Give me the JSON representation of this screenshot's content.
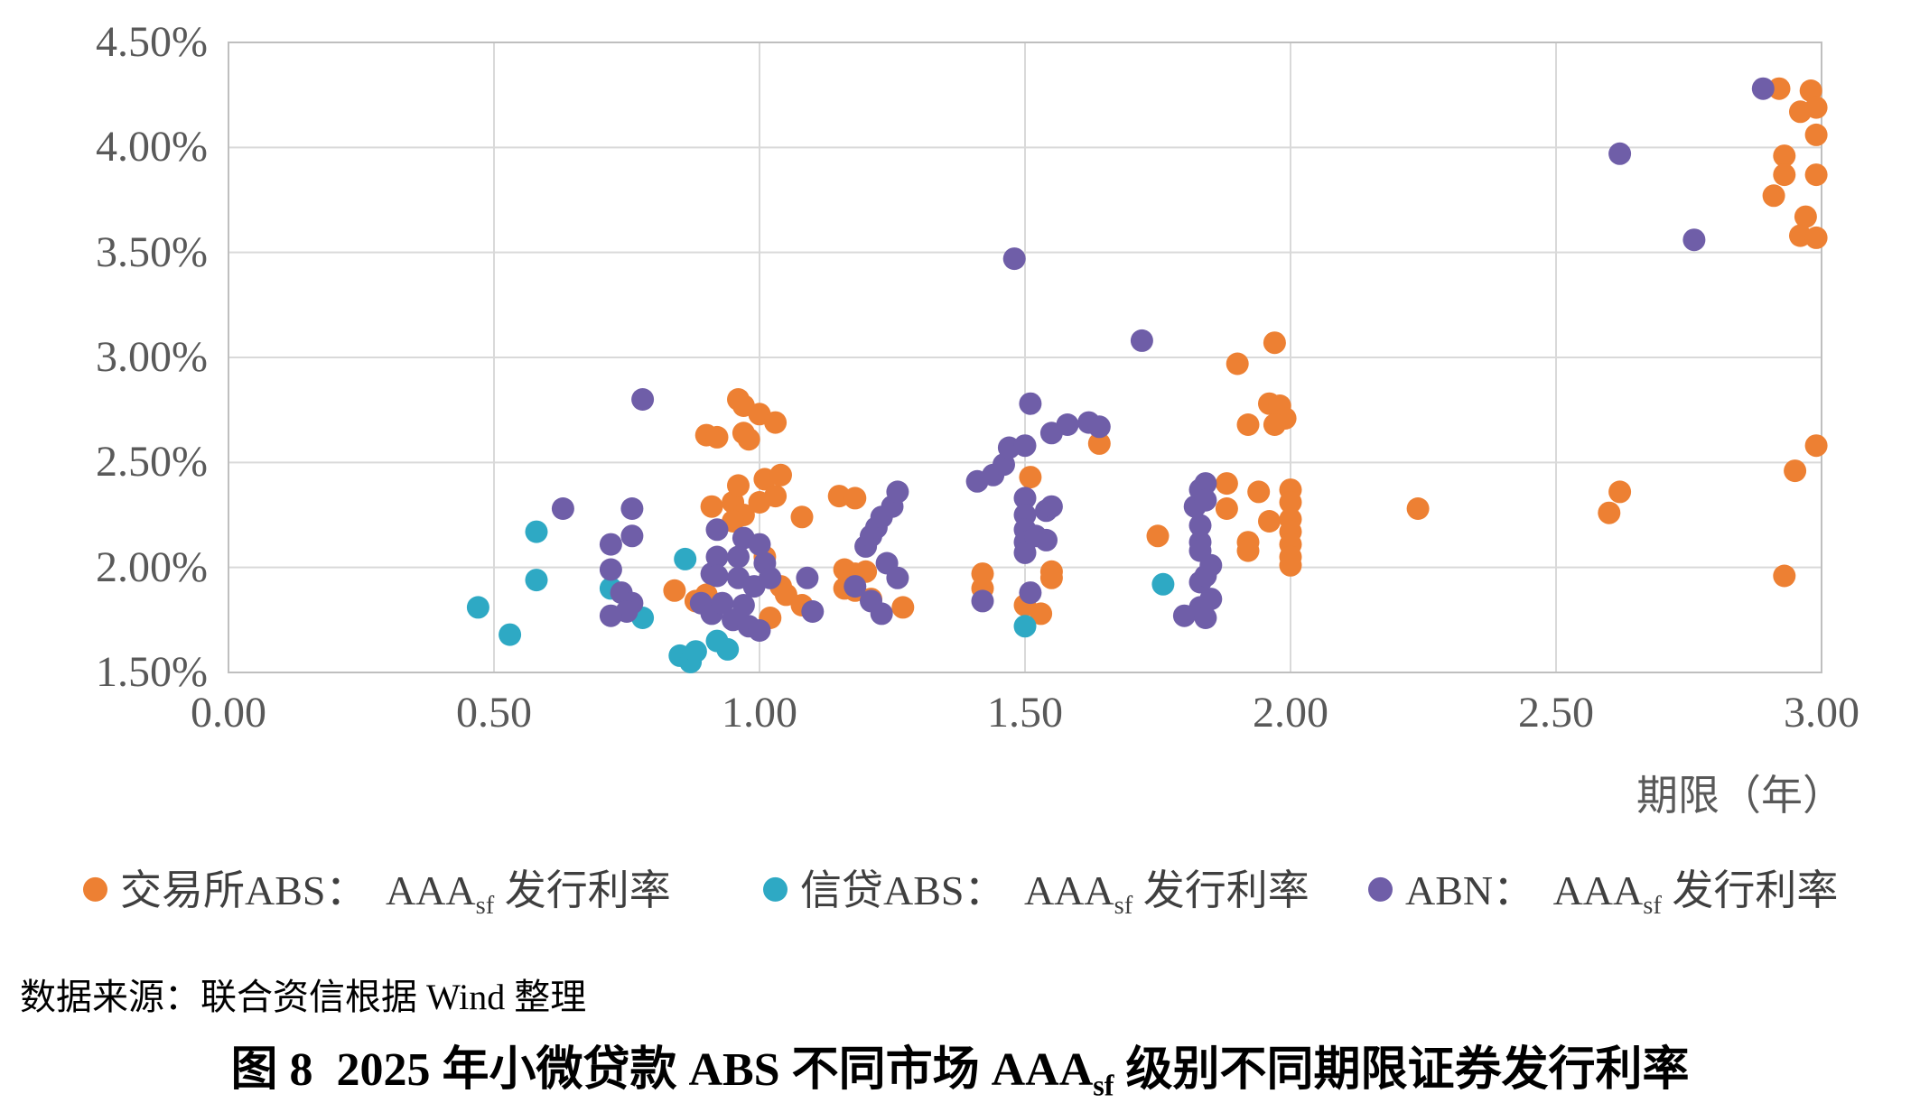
{
  "figure": {
    "source_line": "数据来源：联合资信根据 Wind 整理",
    "title": {
      "prefix": "图 8  2025 年小微贷款 ABS 不同市场 AAA",
      "sub": "sf",
      "suffix": " 级别不同期限证券发行利率"
    }
  },
  "chart_data": {
    "type": "scatter",
    "xlabel": "期限（年）",
    "xlim": [
      0,
      3
    ],
    "ylim": [
      1.5,
      4.5
    ],
    "grid": true,
    "legend_position": "bottom",
    "x_ticks": [
      {
        "value": 0.0,
        "label": "0.00"
      },
      {
        "value": 0.5,
        "label": "0.50"
      },
      {
        "value": 1.0,
        "label": "1.00"
      },
      {
        "value": 1.5,
        "label": "1.50"
      },
      {
        "value": 2.0,
        "label": "2.00"
      },
      {
        "value": 2.5,
        "label": "2.50"
      },
      {
        "value": 3.0,
        "label": "3.00"
      }
    ],
    "y_ticks": [
      {
        "value": 4.5,
        "label": "4.50%"
      },
      {
        "value": 4.0,
        "label": "4.00%"
      },
      {
        "value": 3.5,
        "label": "3.50%"
      },
      {
        "value": 3.0,
        "label": "3.00%"
      },
      {
        "value": 2.5,
        "label": "2.50%"
      },
      {
        "value": 2.0,
        "label": "2.00%"
      },
      {
        "value": 1.5,
        "label": "1.50%"
      }
    ],
    "grid_color": "#d9d9d9",
    "border_color": "#bfbfbf",
    "series": [
      {
        "key": "exchange-abs",
        "name_prefix": "交易所ABS：  AAA",
        "name_sub": "sf",
        "name_suffix": " 发行利率",
        "color": "#ED8033",
        "points": [
          [
            0.84,
            1.89
          ],
          [
            0.88,
            1.84
          ],
          [
            0.9,
            1.87
          ],
          [
            0.9,
            2.63
          ],
          [
            0.92,
            2.62
          ],
          [
            0.96,
            2.8
          ],
          [
            0.97,
            2.77
          ],
          [
            0.97,
            2.64
          ],
          [
            1.0,
            2.73
          ],
          [
            1.03,
            2.69
          ],
          [
            0.98,
            2.61
          ],
          [
            0.91,
            2.29
          ],
          [
            0.95,
            2.31
          ],
          [
            0.96,
            2.39
          ],
          [
            0.97,
            2.25
          ],
          [
            0.95,
            2.22
          ],
          [
            1.0,
            2.31
          ],
          [
            1.01,
            2.42
          ],
          [
            1.03,
            2.34
          ],
          [
            1.04,
            2.44
          ],
          [
            1.08,
            2.24
          ],
          [
            1.01,
            2.05
          ],
          [
            1.04,
            1.91
          ],
          [
            1.05,
            1.87
          ],
          [
            1.08,
            1.82
          ],
          [
            1.02,
            1.76
          ],
          [
            1.15,
            2.34
          ],
          [
            1.18,
            2.33
          ],
          [
            1.16,
            1.99
          ],
          [
            1.18,
            1.97
          ],
          [
            1.2,
            1.98
          ],
          [
            1.16,
            1.9
          ],
          [
            1.18,
            1.89
          ],
          [
            1.21,
            1.85
          ],
          [
            1.27,
            1.81
          ],
          [
            1.42,
            1.97
          ],
          [
            1.42,
            1.9
          ],
          [
            1.51,
            2.43
          ],
          [
            1.55,
            1.98
          ],
          [
            1.55,
            1.95
          ],
          [
            1.5,
            1.82
          ],
          [
            1.53,
            1.78
          ],
          [
            1.64,
            2.59
          ],
          [
            1.75,
            2.15
          ],
          [
            1.88,
            2.4
          ],
          [
            1.88,
            2.28
          ],
          [
            1.94,
            2.36
          ],
          [
            1.92,
            2.12
          ],
          [
            1.92,
            2.08
          ],
          [
            1.96,
            2.22
          ],
          [
            1.9,
            2.97
          ],
          [
            1.97,
            3.07
          ],
          [
            1.96,
            2.78
          ],
          [
            1.98,
            2.77
          ],
          [
            1.99,
            2.71
          ],
          [
            1.97,
            2.68
          ],
          [
            1.92,
            2.68
          ],
          [
            2.0,
            2.37
          ],
          [
            2.0,
            2.31
          ],
          [
            2.0,
            2.23
          ],
          [
            2.0,
            2.17
          ],
          [
            2.0,
            2.11
          ],
          [
            2.0,
            2.05
          ],
          [
            2.0,
            2.01
          ],
          [
            2.24,
            2.28
          ],
          [
            2.6,
            2.26
          ],
          [
            2.62,
            2.36
          ],
          [
            2.93,
            1.96
          ],
          [
            2.95,
            2.46
          ],
          [
            2.99,
            2.58
          ],
          [
            2.92,
            4.28
          ],
          [
            2.98,
            4.27
          ],
          [
            2.96,
            4.17
          ],
          [
            2.99,
            4.19
          ],
          [
            2.99,
            4.06
          ],
          [
            2.93,
            3.96
          ],
          [
            2.93,
            3.87
          ],
          [
            2.99,
            3.87
          ],
          [
            2.91,
            3.77
          ],
          [
            2.97,
            3.67
          ],
          [
            2.96,
            3.58
          ],
          [
            2.99,
            3.57
          ]
        ]
      },
      {
        "key": "credit-abs",
        "name_prefix": "信贷ABS：  AAA",
        "name_sub": "sf",
        "name_suffix": " 发行利率",
        "color": "#2EA9C4",
        "points": [
          [
            0.47,
            1.81
          ],
          [
            0.53,
            1.68
          ],
          [
            0.58,
            2.17
          ],
          [
            0.58,
            1.94
          ],
          [
            0.72,
            1.9
          ],
          [
            0.78,
            1.76
          ],
          [
            0.86,
            2.04
          ],
          [
            0.85,
            1.58
          ],
          [
            0.87,
            1.55
          ],
          [
            0.88,
            1.6
          ],
          [
            0.92,
            1.65
          ],
          [
            0.94,
            1.61
          ],
          [
            1.5,
            1.72
          ],
          [
            1.76,
            1.92
          ]
        ]
      },
      {
        "key": "abn",
        "name_prefix": "ABN：  AAA",
        "name_sub": "sf",
        "name_suffix": " 发行利率",
        "color": "#6F5EA8",
        "points": [
          [
            0.63,
            2.28
          ],
          [
            0.78,
            2.8
          ],
          [
            0.76,
            2.28
          ],
          [
            0.76,
            2.15
          ],
          [
            0.72,
            2.11
          ],
          [
            0.72,
            1.99
          ],
          [
            0.74,
            1.88
          ],
          [
            0.76,
            1.83
          ],
          [
            0.75,
            1.79
          ],
          [
            0.72,
            1.77
          ],
          [
            0.89,
            1.83
          ],
          [
            0.91,
            1.97
          ],
          [
            0.91,
            1.78
          ],
          [
            0.92,
            2.18
          ],
          [
            0.92,
            2.05
          ],
          [
            0.92,
            1.96
          ],
          [
            0.93,
            1.83
          ],
          [
            0.95,
            1.75
          ],
          [
            0.96,
            2.05
          ],
          [
            0.96,
            1.95
          ],
          [
            0.97,
            2.14
          ],
          [
            0.97,
            1.82
          ],
          [
            0.98,
            1.72
          ],
          [
            0.99,
            1.91
          ],
          [
            1.0,
            2.11
          ],
          [
            1.0,
            1.7
          ],
          [
            1.01,
            2.02
          ],
          [
            1.02,
            1.95
          ],
          [
            1.09,
            1.95
          ],
          [
            1.1,
            1.79
          ],
          [
            1.18,
            1.91
          ],
          [
            1.2,
            2.1
          ],
          [
            1.21,
            2.15
          ],
          [
            1.21,
            1.84
          ],
          [
            1.22,
            2.19
          ],
          [
            1.23,
            2.24
          ],
          [
            1.23,
            1.78
          ],
          [
            1.24,
            2.02
          ],
          [
            1.25,
            2.29
          ],
          [
            1.26,
            2.36
          ],
          [
            1.26,
            1.95
          ],
          [
            1.41,
            2.41
          ],
          [
            1.44,
            2.44
          ],
          [
            1.46,
            2.49
          ],
          [
            1.42,
            1.84
          ],
          [
            1.51,
            1.88
          ],
          [
            1.48,
            3.47
          ],
          [
            1.51,
            2.78
          ],
          [
            1.47,
            2.57
          ],
          [
            1.5,
            2.58
          ],
          [
            1.5,
            2.33
          ],
          [
            1.5,
            2.25
          ],
          [
            1.5,
            2.18
          ],
          [
            1.5,
            2.12
          ],
          [
            1.5,
            2.07
          ],
          [
            1.52,
            2.15
          ],
          [
            1.54,
            2.27
          ],
          [
            1.55,
            2.29
          ],
          [
            1.54,
            2.13
          ],
          [
            1.55,
            2.64
          ],
          [
            1.58,
            2.68
          ],
          [
            1.62,
            2.69
          ],
          [
            1.64,
            2.67
          ],
          [
            1.72,
            3.08
          ],
          [
            1.8,
            1.77
          ],
          [
            1.82,
            2.29
          ],
          [
            1.83,
            2.37
          ],
          [
            1.83,
            2.2
          ],
          [
            1.83,
            2.12
          ],
          [
            1.83,
            2.08
          ],
          [
            1.83,
            1.93
          ],
          [
            1.83,
            1.81
          ],
          [
            1.84,
            2.4
          ],
          [
            1.84,
            2.32
          ],
          [
            1.84,
            1.96
          ],
          [
            1.84,
            1.76
          ],
          [
            1.85,
            2.01
          ],
          [
            1.85,
            1.85
          ],
          [
            2.62,
            3.97
          ],
          [
            2.76,
            3.56
          ],
          [
            2.89,
            4.28
          ]
        ]
      }
    ]
  }
}
